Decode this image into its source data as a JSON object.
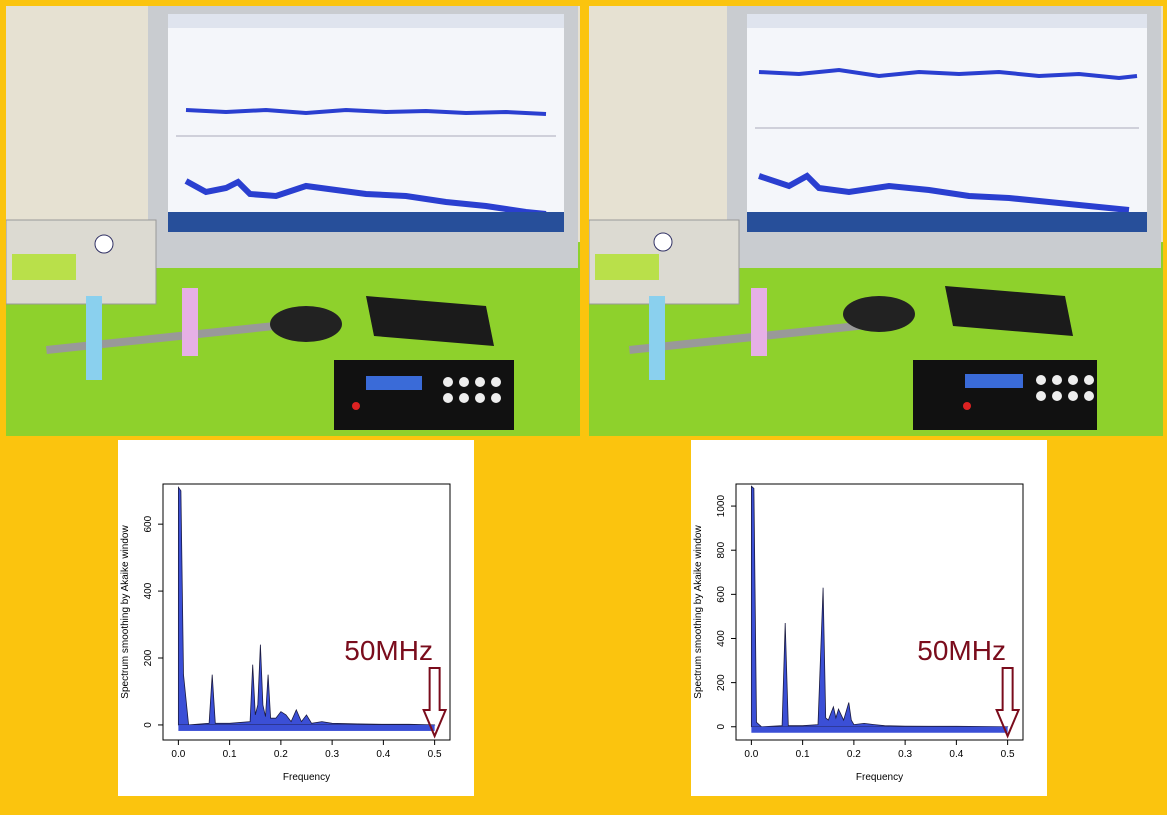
{
  "photos": [
    {
      "name": "setup-photo-left",
      "description_icon": "lab-setup-photo"
    },
    {
      "name": "setup-photo-right",
      "description_icon": "lab-setup-photo"
    }
  ],
  "colors": {
    "background": "#fbc40e",
    "spectrum_fill": "#3b4fd6",
    "annotation": "#7a0c1c",
    "bench": "#8ed12c"
  },
  "chart_data": [
    {
      "type": "area",
      "xlabel": "Frequency",
      "ylabel": "Spectrum smoothing by  Akaike  window",
      "xlim": [
        -0.03,
        0.53
      ],
      "ylim": [
        -45,
        720
      ],
      "xticks": [
        "0.0",
        "0.1",
        "0.2",
        "0.3",
        "0.4",
        "0.5"
      ],
      "yticks": [
        "0",
        "200",
        "400",
        "600"
      ],
      "x": [
        0.0,
        0.005,
        0.01,
        0.02,
        0.06,
        0.066,
        0.072,
        0.1,
        0.14,
        0.145,
        0.15,
        0.155,
        0.16,
        0.165,
        0.17,
        0.175,
        0.18,
        0.19,
        0.2,
        0.21,
        0.22,
        0.23,
        0.24,
        0.25,
        0.26,
        0.28,
        0.3,
        0.35,
        0.4,
        0.45,
        0.5
      ],
      "y": [
        710,
        700,
        150,
        0,
        5,
        150,
        5,
        5,
        10,
        180,
        30,
        60,
        240,
        60,
        25,
        150,
        20,
        20,
        40,
        30,
        10,
        45,
        10,
        30,
        5,
        10,
        5,
        3,
        2,
        2,
        0
      ],
      "annotation": {
        "label": "50MHz",
        "x": 0.5
      }
    },
    {
      "type": "area",
      "xlabel": "Frequency",
      "ylabel": "Spectrum smoothing by  Akaike  window",
      "xlim": [
        -0.03,
        0.53
      ],
      "ylim": [
        -60,
        1100
      ],
      "xticks": [
        "0.0",
        "0.1",
        "0.2",
        "0.3",
        "0.4",
        "0.5"
      ],
      "yticks": [
        "0",
        "200",
        "400",
        "600",
        "800",
        "1000"
      ],
      "x": [
        0.0,
        0.005,
        0.01,
        0.02,
        0.06,
        0.066,
        0.072,
        0.1,
        0.13,
        0.14,
        0.145,
        0.15,
        0.155,
        0.16,
        0.165,
        0.17,
        0.18,
        0.19,
        0.195,
        0.2,
        0.22,
        0.24,
        0.26,
        0.3,
        0.35,
        0.4,
        0.45,
        0.5
      ],
      "y": [
        1090,
        1080,
        20,
        0,
        5,
        470,
        5,
        5,
        10,
        630,
        40,
        30,
        60,
        90,
        40,
        80,
        30,
        110,
        30,
        10,
        15,
        10,
        5,
        3,
        2,
        2,
        1,
        0
      ],
      "annotation": {
        "label": "50MHz",
        "x": 0.5
      }
    }
  ]
}
